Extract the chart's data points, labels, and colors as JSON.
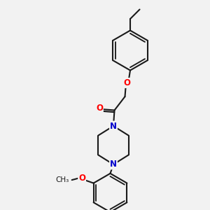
{
  "bg_color": "#f2f2f2",
  "bond_color": "#1a1a1a",
  "bond_width": 1.5,
  "atom_colors": {
    "O": "#ff0000",
    "N": "#0000cc",
    "C": "#1a1a1a"
  },
  "font_size_atom": 8.5,
  "fig_size": [
    3.0,
    3.0
  ],
  "dpi": 100
}
